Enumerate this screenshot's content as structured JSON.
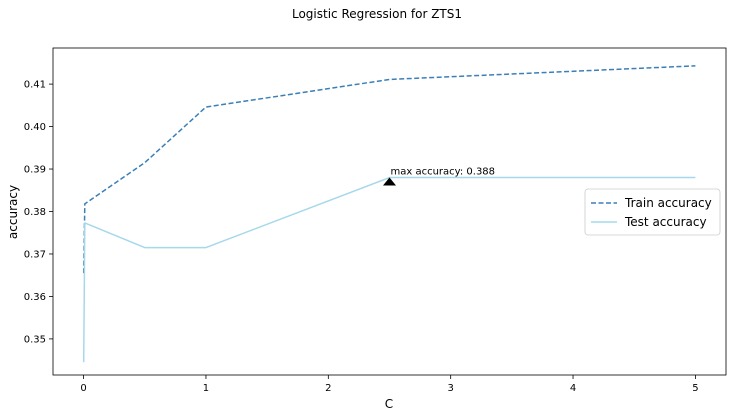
{
  "chart_data": {
    "type": "line",
    "title": "Logistic Regression for ZTS1",
    "xlabel": "C",
    "ylabel": "accuracy",
    "xlim": [
      -0.25,
      5.25
    ],
    "ylim": [
      0.3415,
      0.4185
    ],
    "xticks": [
      0,
      1,
      2,
      3,
      4,
      5
    ],
    "yticks": [
      0.35,
      0.36,
      0.37,
      0.38,
      0.39,
      0.4,
      0.41
    ],
    "ytick_labels": [
      "0.35",
      "0.36",
      "0.37",
      "0.38",
      "0.39",
      "0.40",
      "0.41"
    ],
    "grid": false,
    "legend_position": "right",
    "series": [
      {
        "name": "Train accuracy",
        "color": "#3a7fb8",
        "style": "dashed",
        "x": [
          0.001,
          0.01,
          0.5,
          1,
          2.5,
          5
        ],
        "y": [
          0.3655,
          0.3818,
          0.3915,
          0.4046,
          0.4111,
          0.4143
        ]
      },
      {
        "name": "Test accuracy",
        "color": "#a6d8ea",
        "style": "solid",
        "x": [
          0.001,
          0.01,
          0.5,
          1,
          2.5,
          5
        ],
        "y": [
          0.3445,
          0.3773,
          0.3715,
          0.3715,
          0.388,
          0.388
        ]
      }
    ],
    "annotation": {
      "text": "max accuracy: 0.388",
      "x": 2.5,
      "y": 0.388,
      "marker": "triangle"
    }
  }
}
